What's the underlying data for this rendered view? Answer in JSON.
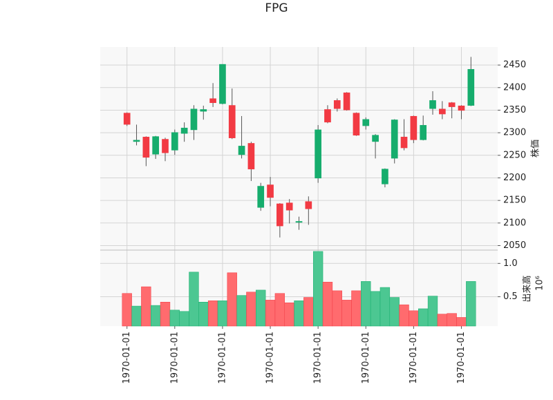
{
  "chart_data": {
    "type": "candlestick",
    "title": "FPG",
    "ylabel": "株価",
    "volume_label": "出来高",
    "volume_offset_label": "10⁶",
    "up_color": "#16ad6d",
    "down_color": "#f23a43",
    "volume_up_color": "#4cc792",
    "volume_down_color": "#ff6b6e",
    "grid": true,
    "xlim": [
      -2.8,
      38.8
    ],
    "xticks": [
      {
        "value": 0,
        "label": "1970-01-01"
      },
      {
        "value": 5,
        "label": "1970-01-01"
      },
      {
        "value": 10,
        "label": "1970-01-01"
      },
      {
        "value": 15,
        "label": "1970-01-01"
      },
      {
        "value": 20,
        "label": "1970-01-01"
      },
      {
        "value": 25,
        "label": "1970-01-01"
      },
      {
        "value": 30,
        "label": "1970-01-01"
      },
      {
        "value": 35,
        "label": "1970-01-01"
      }
    ],
    "ylim": [
      2040,
      2490
    ],
    "yticks": [
      2050,
      2100,
      2150,
      2200,
      2250,
      2300,
      2350,
      2400,
      2450
    ],
    "volume_ylim": [
      0.06,
      1.2
    ],
    "volume_yticks": [
      0.5,
      {
        "value": 1,
        "label": "1.0"
      }
    ],
    "open": [
      2344,
      2280,
      2291,
      2252,
      2286,
      2261,
      2298,
      2306,
      2347,
      2376,
      2364,
      2361,
      2251,
      2277,
      2134,
      2185,
      2143,
      2145,
      2101,
      2148,
      2199,
      2352,
      2372,
      2389,
      2344,
      2315,
      2280,
      2186,
      2243,
      2291,
      2337,
      2284,
      2353,
      2353,
      2367,
      2360,
      2360
    ],
    "high": [
      2345,
      2318,
      2292,
      2293,
      2289,
      2307,
      2323,
      2361,
      2360,
      2410,
      2452,
      2398,
      2337,
      2280,
      2189,
      2202,
      2144,
      2153,
      2114,
      2159,
      2317,
      2361,
      2376,
      2390,
      2345,
      2334,
      2297,
      2221,
      2330,
      2330,
      2338,
      2338,
      2392,
      2370,
      2368,
      2361,
      2468
    ],
    "low": [
      2315,
      2272,
      2226,
      2242,
      2237,
      2251,
      2280,
      2284,
      2329,
      2357,
      2363,
      2286,
      2243,
      2193,
      2127,
      2137,
      2068,
      2099,
      2085,
      2096,
      2189,
      2321,
      2347,
      2349,
      2293,
      2307,
      2243,
      2179,
      2232,
      2261,
      2277,
      2283,
      2340,
      2330,
      2332,
      2330,
      2359
    ],
    "close": [
      2318,
      2284,
      2245,
      2292,
      2255,
      2301,
      2311,
      2353,
      2352,
      2366,
      2452,
      2288,
      2271,
      2219,
      2182,
      2156,
      2093,
      2128,
      2104,
      2131,
      2307,
      2323,
      2353,
      2350,
      2294,
      2330,
      2295,
      2220,
      2329,
      2266,
      2284,
      2317,
      2372,
      2341,
      2357,
      2349,
      2441
    ],
    "volume": [
      0.55,
      0.36,
      0.65,
      0.37,
      0.42,
      0.3,
      0.28,
      0.87,
      0.42,
      0.44,
      0.44,
      0.86,
      0.52,
      0.57,
      0.6,
      0.45,
      0.55,
      0.41,
      0.44,
      0.49,
      1.18,
      0.72,
      0.59,
      0.45,
      0.59,
      0.73,
      0.58,
      0.64,
      0.49,
      0.38,
      0.29,
      0.32,
      0.51,
      0.24,
      0.25,
      0.19,
      0.73
    ]
  }
}
